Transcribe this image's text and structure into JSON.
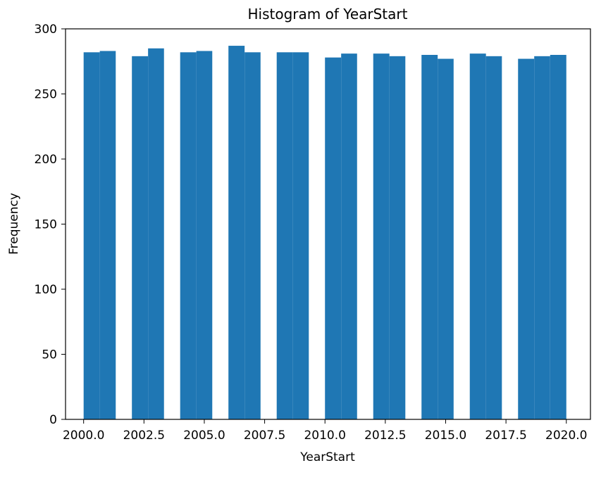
{
  "chart_data": {
    "type": "bar",
    "title": "Histogram of YearStart",
    "xlabel": "YearStart",
    "ylabel": "Frequency",
    "xlim": [
      1999.25,
      2021.0
    ],
    "ylim": [
      0,
      300
    ],
    "grid": false,
    "bar_color": "#1f77b4",
    "x_ticks": [
      {
        "value": 2000.0,
        "label": "2000.0"
      },
      {
        "value": 2002.5,
        "label": "2002.5"
      },
      {
        "value": 2005.0,
        "label": "2005.0"
      },
      {
        "value": 2007.5,
        "label": "2007.5"
      },
      {
        "value": 2010.0,
        "label": "2010.0"
      },
      {
        "value": 2012.5,
        "label": "2012.5"
      },
      {
        "value": 2015.0,
        "label": "2015.0"
      },
      {
        "value": 2017.5,
        "label": "2017.5"
      },
      {
        "value": 2020.0,
        "label": "2020.0"
      }
    ],
    "y_ticks": [
      {
        "value": 0,
        "label": "0"
      },
      {
        "value": 50,
        "label": "50"
      },
      {
        "value": 100,
        "label": "100"
      },
      {
        "value": 150,
        "label": "150"
      },
      {
        "value": 200,
        "label": "200"
      },
      {
        "value": 250,
        "label": "250"
      },
      {
        "value": 300,
        "label": "300"
      }
    ],
    "bins": [
      {
        "x0": 2000.0,
        "x1": 2000.67,
        "value": 282
      },
      {
        "x0": 2000.67,
        "x1": 2001.33,
        "value": 283
      },
      {
        "x0": 2002.0,
        "x1": 2002.67,
        "value": 279
      },
      {
        "x0": 2002.67,
        "x1": 2003.33,
        "value": 285
      },
      {
        "x0": 2004.0,
        "x1": 2004.67,
        "value": 282
      },
      {
        "x0": 2004.67,
        "x1": 2005.33,
        "value": 283
      },
      {
        "x0": 2006.0,
        "x1": 2006.67,
        "value": 287
      },
      {
        "x0": 2006.67,
        "x1": 2007.33,
        "value": 282
      },
      {
        "x0": 2008.0,
        "x1": 2008.67,
        "value": 282
      },
      {
        "x0": 2008.67,
        "x1": 2009.33,
        "value": 282
      },
      {
        "x0": 2010.0,
        "x1": 2010.67,
        "value": 278
      },
      {
        "x0": 2010.67,
        "x1": 2011.33,
        "value": 281
      },
      {
        "x0": 2012.0,
        "x1": 2012.67,
        "value": 281
      },
      {
        "x0": 2012.67,
        "x1": 2013.33,
        "value": 279
      },
      {
        "x0": 2014.0,
        "x1": 2014.67,
        "value": 280
      },
      {
        "x0": 2014.67,
        "x1": 2015.33,
        "value": 277
      },
      {
        "x0": 2016.0,
        "x1": 2016.67,
        "value": 281
      },
      {
        "x0": 2016.67,
        "x1": 2017.33,
        "value": 279
      },
      {
        "x0": 2018.0,
        "x1": 2018.67,
        "value": 277
      },
      {
        "x0": 2018.67,
        "x1": 2019.33,
        "value": 279
      },
      {
        "x0": 2019.33,
        "x1": 2020.0,
        "value": 280
      }
    ]
  }
}
